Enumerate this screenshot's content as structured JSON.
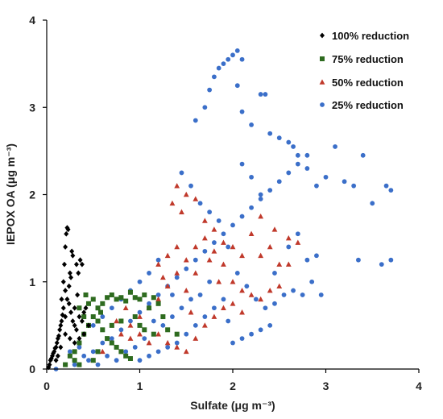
{
  "chart_data": {
    "type": "scatter",
    "xlabel": "Sulfate (μg m⁻³)",
    "ylabel": "IEPOX OA (μg m⁻³)",
    "xlim": [
      0,
      4
    ],
    "ylim": [
      0,
      4
    ],
    "xticks": [
      "0",
      "1",
      "2",
      "3",
      "4"
    ],
    "yticks": [
      "0",
      "1",
      "2",
      "3",
      "4"
    ],
    "grid": false,
    "legend_position": "top-right",
    "series": [
      {
        "name": "100% reduction",
        "marker": "diamond",
        "color": "#000000",
        "points": [
          [
            0.02,
            0.02
          ],
          [
            0.03,
            0.05
          ],
          [
            0.04,
            0.1
          ],
          [
            0.05,
            0.12
          ],
          [
            0.06,
            0.15
          ],
          [
            0.07,
            0.18
          ],
          [
            0.08,
            0.2
          ],
          [
            0.09,
            0.24
          ],
          [
            0.1,
            0.25
          ],
          [
            0.11,
            0.3
          ],
          [
            0.12,
            0.35
          ],
          [
            0.13,
            0.38
          ],
          [
            0.14,
            0.45
          ],
          [
            0.15,
            0.5
          ],
          [
            0.16,
            0.55
          ],
          [
            0.17,
            0.62
          ],
          [
            0.18,
            0.7
          ],
          [
            0.18,
            1.0
          ],
          [
            0.19,
            1.2
          ],
          [
            0.2,
            1.4
          ],
          [
            0.21,
            1.55
          ],
          [
            0.22,
            1.62
          ],
          [
            0.23,
            1.6
          ],
          [
            0.2,
            0.9
          ],
          [
            0.22,
            0.8
          ],
          [
            0.24,
            0.75
          ],
          [
            0.25,
            1.1
          ],
          [
            0.26,
            1.05
          ],
          [
            0.27,
            1.35
          ],
          [
            0.28,
            1.3
          ],
          [
            0.3,
            0.7
          ],
          [
            0.32,
            1.2
          ],
          [
            0.34,
            1.1
          ],
          [
            0.36,
            1.25
          ],
          [
            0.38,
            1.2
          ],
          [
            0.28,
            0.55
          ],
          [
            0.3,
            0.5
          ],
          [
            0.32,
            0.45
          ],
          [
            0.35,
            0.6
          ],
          [
            0.38,
            0.55
          ],
          [
            0.4,
            0.65
          ],
          [
            0.42,
            0.7
          ],
          [
            0.45,
            0.5
          ],
          [
            0.2,
            0.4
          ],
          [
            0.25,
            0.35
          ],
          [
            0.15,
            0.25
          ],
          [
            0.12,
            0.15
          ],
          [
            0.1,
            0.1
          ],
          [
            0.3,
            0.3
          ],
          [
            0.35,
            0.35
          ],
          [
            0.4,
            0.4
          ],
          [
            0.26,
            0.65
          ],
          [
            0.33,
            0.85
          ],
          [
            0.24,
            0.95
          ],
          [
            0.2,
            0.6
          ],
          [
            0.16,
            0.8
          ]
        ]
      },
      {
        "name": "75% reduction",
        "marker": "square",
        "color": "#2E6B1F",
        "points": [
          [
            0.2,
            0.05
          ],
          [
            0.25,
            0.15
          ],
          [
            0.3,
            0.2
          ],
          [
            0.35,
            0.3
          ],
          [
            0.4,
            0.4
          ],
          [
            0.45,
            0.5
          ],
          [
            0.5,
            0.6
          ],
          [
            0.55,
            0.7
          ],
          [
            0.6,
            0.75
          ],
          [
            0.65,
            0.82
          ],
          [
            0.7,
            0.85
          ],
          [
            0.75,
            0.8
          ],
          [
            0.8,
            0.82
          ],
          [
            0.85,
            0.78
          ],
          [
            0.9,
            0.88
          ],
          [
            0.95,
            0.82
          ],
          [
            1.0,
            0.8
          ],
          [
            1.05,
            0.85
          ],
          [
            1.1,
            0.7
          ],
          [
            1.15,
            0.82
          ],
          [
            1.2,
            0.75
          ],
          [
            0.4,
            0.6
          ],
          [
            0.45,
            0.75
          ],
          [
            0.5,
            0.8
          ],
          [
            0.55,
            0.55
          ],
          [
            0.6,
            0.45
          ],
          [
            0.65,
            0.35
          ],
          [
            0.7,
            0.3
          ],
          [
            0.75,
            0.25
          ],
          [
            0.8,
            0.2
          ],
          [
            0.85,
            0.15
          ],
          [
            0.9,
            0.12
          ],
          [
            0.3,
            0.1
          ],
          [
            0.35,
            0.05
          ],
          [
            0.5,
            0.1
          ],
          [
            0.55,
            0.2
          ],
          [
            0.7,
            0.5
          ],
          [
            0.8,
            0.55
          ],
          [
            0.95,
            0.6
          ],
          [
            1.0,
            0.5
          ],
          [
            1.05,
            0.45
          ],
          [
            1.15,
            0.4
          ],
          [
            1.25,
            0.6
          ],
          [
            1.3,
            0.45
          ],
          [
            1.4,
            0.4
          ],
          [
            0.35,
            0.7
          ],
          [
            0.42,
            0.85
          ],
          [
            0.58,
            0.65
          ]
        ]
      },
      {
        "name": "50% reduction",
        "marker": "triangle",
        "color": "#C0392B",
        "points": [
          [
            0.5,
            0.1
          ],
          [
            0.6,
            0.2
          ],
          [
            0.7,
            0.3
          ],
          [
            0.8,
            0.4
          ],
          [
            0.9,
            0.5
          ],
          [
            1.0,
            0.6
          ],
          [
            1.1,
            0.7
          ],
          [
            1.2,
            0.8
          ],
          [
            1.3,
            0.95
          ],
          [
            1.4,
            1.1
          ],
          [
            1.5,
            1.25
          ],
          [
            1.6,
            1.4
          ],
          [
            1.7,
            1.5
          ],
          [
            1.8,
            1.6
          ],
          [
            1.9,
            1.45
          ],
          [
            2.0,
            1.4
          ],
          [
            2.1,
            1.3
          ],
          [
            2.2,
            1.55
          ],
          [
            2.3,
            1.75
          ],
          [
            2.4,
            1.4
          ],
          [
            2.5,
            1.2
          ],
          [
            2.6,
            1.5
          ],
          [
            2.7,
            1.45
          ],
          [
            1.4,
            2.1
          ],
          [
            1.5,
            2.0
          ],
          [
            1.6,
            1.95
          ],
          [
            1.35,
            1.9
          ],
          [
            1.45,
            1.8
          ],
          [
            1.7,
            1.7
          ],
          [
            1.8,
            1.35
          ],
          [
            1.9,
            1.2
          ],
          [
            2.0,
            1.0
          ],
          [
            2.1,
            0.9
          ],
          [
            2.2,
            0.85
          ],
          [
            2.3,
            0.8
          ],
          [
            2.4,
            0.9
          ],
          [
            1.2,
            0.4
          ],
          [
            1.3,
            0.3
          ],
          [
            1.4,
            0.25
          ],
          [
            1.5,
            0.2
          ],
          [
            1.6,
            0.35
          ],
          [
            1.7,
            0.5
          ],
          [
            1.8,
            0.6
          ],
          [
            1.9,
            0.7
          ],
          [
            2.0,
            0.75
          ],
          [
            2.1,
            0.65
          ],
          [
            1.1,
            0.3
          ],
          [
            1.0,
            0.4
          ],
          [
            0.9,
            0.35
          ],
          [
            1.5,
            0.9
          ],
          [
            1.6,
            1.1
          ],
          [
            1.2,
            1.2
          ],
          [
            1.3,
            1.3
          ],
          [
            1.4,
            1.4
          ],
          [
            2.3,
            1.3
          ],
          [
            2.5,
            0.95
          ],
          [
            2.6,
            1.2
          ],
          [
            1.75,
            1.25
          ],
          [
            1.85,
            1.0
          ],
          [
            2.45,
            1.6
          ],
          [
            1.25,
            1.05
          ],
          [
            1.55,
            0.65
          ],
          [
            0.75,
            0.55
          ],
          [
            0.85,
            0.7
          ]
        ]
      },
      {
        "name": "25% reduction",
        "marker": "circle",
        "color": "#3B6FC9",
        "points": [
          [
            0.1,
            0.0
          ],
          [
            0.2,
            0.05
          ],
          [
            0.3,
            0.1
          ],
          [
            0.4,
            0.15
          ],
          [
            0.5,
            0.2
          ],
          [
            0.6,
            0.3
          ],
          [
            0.7,
            0.35
          ],
          [
            0.8,
            0.45
          ],
          [
            0.9,
            0.55
          ],
          [
            1.0,
            0.65
          ],
          [
            1.1,
            0.75
          ],
          [
            1.2,
            0.85
          ],
          [
            1.3,
            0.95
          ],
          [
            1.4,
            1.05
          ],
          [
            1.5,
            1.15
          ],
          [
            1.6,
            1.25
          ],
          [
            1.7,
            1.35
          ],
          [
            1.8,
            1.45
          ],
          [
            1.9,
            1.55
          ],
          [
            2.0,
            1.65
          ],
          [
            2.1,
            1.75
          ],
          [
            2.2,
            1.85
          ],
          [
            2.3,
            1.95
          ],
          [
            2.4,
            2.05
          ],
          [
            2.5,
            2.15
          ],
          [
            2.6,
            2.25
          ],
          [
            2.7,
            2.35
          ],
          [
            2.8,
            2.45
          ],
          [
            2.9,
            2.1
          ],
          [
            3.0,
            2.2
          ],
          [
            3.1,
            2.55
          ],
          [
            3.2,
            2.15
          ],
          [
            3.3,
            2.1
          ],
          [
            3.4,
            2.45
          ],
          [
            3.5,
            1.9
          ],
          [
            3.6,
            1.2
          ],
          [
            3.65,
            2.1
          ],
          [
            3.7,
            2.05
          ],
          [
            3.7,
            1.25
          ],
          [
            3.35,
            1.25
          ],
          [
            1.6,
            2.85
          ],
          [
            1.7,
            3.0
          ],
          [
            1.75,
            3.2
          ],
          [
            1.8,
            3.35
          ],
          [
            1.85,
            3.45
          ],
          [
            1.9,
            3.5
          ],
          [
            1.95,
            3.55
          ],
          [
            2.0,
            3.6
          ],
          [
            2.05,
            3.65
          ],
          [
            2.1,
            3.55
          ],
          [
            2.05,
            3.25
          ],
          [
            2.1,
            2.95
          ],
          [
            2.2,
            2.8
          ],
          [
            2.3,
            3.15
          ],
          [
            2.35,
            3.15
          ],
          [
            2.4,
            2.7
          ],
          [
            2.5,
            2.65
          ],
          [
            2.6,
            2.6
          ],
          [
            2.65,
            2.55
          ],
          [
            2.7,
            2.45
          ],
          [
            2.8,
            2.3
          ],
          [
            2.3,
            2.0
          ],
          [
            2.2,
            2.2
          ],
          [
            2.1,
            2.35
          ],
          [
            1.45,
            2.25
          ],
          [
            1.55,
            2.1
          ],
          [
            1.65,
            1.9
          ],
          [
            1.75,
            1.8
          ],
          [
            1.85,
            1.7
          ],
          [
            1.95,
            1.4
          ],
          [
            2.05,
            1.1
          ],
          [
            2.15,
            0.95
          ],
          [
            2.25,
            0.8
          ],
          [
            2.35,
            0.7
          ],
          [
            2.45,
            0.75
          ],
          [
            2.55,
            0.85
          ],
          [
            2.65,
            0.9
          ],
          [
            2.75,
            0.85
          ],
          [
            2.85,
            1.0
          ],
          [
            2.95,
            0.85
          ],
          [
            1.0,
            0.1
          ],
          [
            1.1,
            0.15
          ],
          [
            1.2,
            0.2
          ],
          [
            1.3,
            0.25
          ],
          [
            1.4,
            0.3
          ],
          [
            1.5,
            0.4
          ],
          [
            1.6,
            0.5
          ],
          [
            1.7,
            0.6
          ],
          [
            1.8,
            0.7
          ],
          [
            1.9,
            0.8
          ],
          [
            2.0,
            0.3
          ],
          [
            2.1,
            0.35
          ],
          [
            2.2,
            0.4
          ],
          [
            2.3,
            0.45
          ],
          [
            2.4,
            0.5
          ],
          [
            0.5,
            0.5
          ],
          [
            0.6,
            0.6
          ],
          [
            0.7,
            0.7
          ],
          [
            0.8,
            0.8
          ],
          [
            0.9,
            0.9
          ],
          [
            1.0,
            1.0
          ],
          [
            1.1,
            1.1
          ],
          [
            1.2,
            1.25
          ],
          [
            0.4,
            0.4
          ],
          [
            0.3,
            0.05
          ],
          [
            0.45,
            0.1
          ],
          [
            0.55,
            0.05
          ],
          [
            0.65,
            0.15
          ],
          [
            0.75,
            0.1
          ],
          [
            0.85,
            0.2
          ],
          [
            0.95,
            0.25
          ],
          [
            1.05,
            0.35
          ],
          [
            1.25,
            0.5
          ],
          [
            1.35,
            0.6
          ],
          [
            1.45,
            0.7
          ],
          [
            1.55,
            0.8
          ],
          [
            1.65,
            0.85
          ],
          [
            1.75,
            1.0
          ],
          [
            2.6,
            1.4
          ],
          [
            2.7,
            1.55
          ],
          [
            2.8,
            1.25
          ],
          [
            2.9,
            1.3
          ],
          [
            1.15,
            0.55
          ],
          [
            1.35,
            0.85
          ],
          [
            0.35,
            0.25
          ],
          [
            0.25,
            0.2
          ],
          [
            1.95,
            0.55
          ],
          [
            2.45,
            1.1
          ]
        ]
      }
    ]
  }
}
